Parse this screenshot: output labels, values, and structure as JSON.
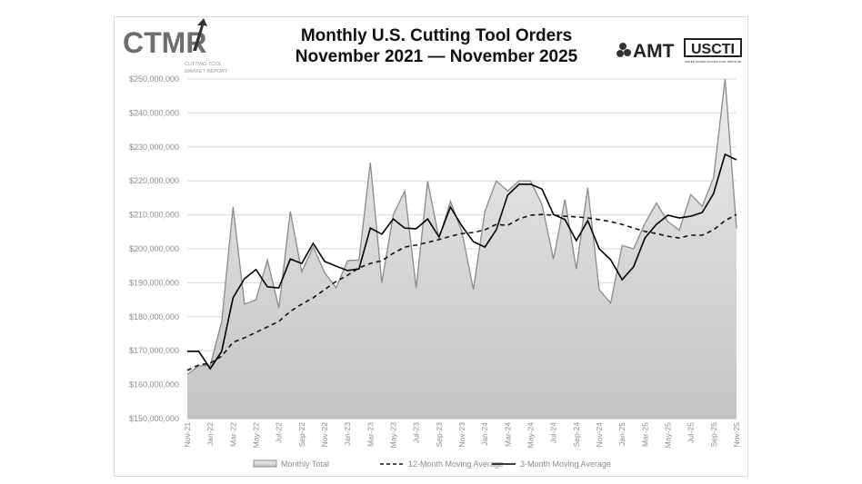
{
  "logos": {
    "left": {
      "main": "CTMR",
      "sub1": "CUTTING TOOL",
      "sub2": "MARKET REPORT"
    },
    "right": {
      "amt": "AMT",
      "usc": "USCTI",
      "usc_sub": "UNITED STATES CUTTING TOOL INSTITUTE"
    }
  },
  "colors": {
    "area_top": "#ececec",
    "area_bottom": "#c4c4c4",
    "area_line": "#8a8a8a",
    "ma12": "#111111",
    "ma3": "#000000",
    "grid": "#d9d9d9",
    "text": "#8c8c8c"
  },
  "chart_data": {
    "type": "area",
    "title": "Monthly U.S. Cutting Tool Orders",
    "subtitle": "November 2021 — November 2025",
    "xlabel": "",
    "ylabel": "",
    "ylim": [
      150000000,
      250000000
    ],
    "yticks": [
      "$150,000,000",
      "$160,000,000",
      "$170,000,000",
      "$180,000,000",
      "$190,000,000",
      "$200,000,000",
      "$210,000,000",
      "$220,000,000",
      "$230,000,000",
      "$240,000,000",
      "$250,000,000"
    ],
    "grid": true,
    "legend": "bottom",
    "xtick_labels": [
      "Nov-21",
      "Jan-22",
      "Mar-22",
      "May-22",
      "Jul-22",
      "Sep-22",
      "Nov-22",
      "Jan-23",
      "Mar-23",
      "May-23",
      "Jul-23",
      "Sep-23",
      "Nov-23",
      "Jan-24",
      "Mar-24",
      "May-24",
      "Jul-24",
      "Sep-24",
      "Nov-24",
      "Jan-25",
      "Mar-25",
      "May-25",
      "Jul-25",
      "Sep-25",
      "Nov-25"
    ],
    "x": [
      "Nov-21",
      "Dec-21",
      "Jan-22",
      "Feb-22",
      "Mar-22",
      "Apr-22",
      "May-22",
      "Jun-22",
      "Jul-22",
      "Aug-22",
      "Sep-22",
      "Oct-22",
      "Nov-22",
      "Dec-22",
      "Jan-23",
      "Feb-23",
      "Mar-23",
      "Apr-23",
      "May-23",
      "Jun-23",
      "Jul-23",
      "Aug-23",
      "Sep-23",
      "Oct-23",
      "Nov-23",
      "Dec-23",
      "Jan-24",
      "Feb-24",
      "Mar-24",
      "Apr-24",
      "May-24",
      "Jun-24",
      "Jul-24",
      "Aug-24",
      "Sep-24",
      "Oct-24",
      "Nov-24",
      "Dec-24",
      "Jan-25",
      "Feb-25",
      "Mar-25",
      "Apr-25",
      "May-25",
      "Jun-25",
      "Jul-25",
      "Aug-25",
      "Sep-25",
      "Oct-25",
      "Nov-25"
    ],
    "series": [
      {
        "name": "Monthly Total",
        "style": "area",
        "values": [
          163.0,
          165.5,
          165.7,
          178.5,
          212.3,
          183.7,
          185.0,
          196.7,
          182.6,
          211.0,
          193.3,
          200.5,
          193.0,
          188.5,
          196.5,
          196.7,
          225.4,
          190.0,
          210.0,
          217.0,
          188.5,
          219.9,
          203.0,
          214.0,
          205.0,
          188.0,
          211.0,
          220.0,
          217.0,
          220.0,
          220.0,
          213.0,
          197.0,
          214.5,
          194.0,
          218.0,
          188.0,
          184.0,
          201.0,
          200.0,
          207.5,
          213.5,
          208.0,
          205.5,
          216.0,
          212.5,
          221.0,
          250.0,
          206.0
        ]
      },
      {
        "name": "12-Month Moving Average",
        "style": "dashed",
        "values": [
          164.2,
          165.8,
          166.3,
          168.4,
          172.5,
          173.8,
          175.4,
          177.0,
          178.6,
          181.6,
          183.7,
          185.6,
          188.0,
          190.4,
          192.2,
          194.4,
          195.7,
          196.5,
          198.7,
          200.5,
          201.1,
          201.9,
          202.7,
          203.7,
          204.5,
          204.8,
          205.6,
          207.2,
          206.9,
          208.8,
          209.9,
          210.1,
          209.9,
          209.6,
          209.4,
          209.1,
          208.6,
          208.0,
          207.2,
          206.1,
          205.1,
          204.5,
          203.7,
          203.2,
          204.0,
          204.0,
          205.6,
          208.3,
          210.1
        ]
      },
      {
        "name": "3-Month Moving Average",
        "style": "solid",
        "values": [
          169.8,
          169.8,
          164.7,
          169.8,
          185.6,
          191.2,
          193.9,
          188.8,
          188.5,
          197.0,
          195.7,
          201.6,
          196.3,
          194.9,
          193.6,
          194.1,
          206.1,
          204.3,
          208.8,
          206.1,
          205.9,
          208.8,
          203.5,
          212.3,
          206.7,
          202.1,
          200.5,
          205.6,
          215.8,
          219.0,
          219.0,
          217.6,
          210.1,
          208.6,
          202.4,
          208.3,
          200.0,
          196.8,
          190.9,
          194.7,
          203.2,
          207.2,
          209.9,
          209.1,
          209.6,
          210.7,
          216.3,
          227.8,
          226.2
        ]
      }
    ],
    "value_unit": "millions USD"
  }
}
